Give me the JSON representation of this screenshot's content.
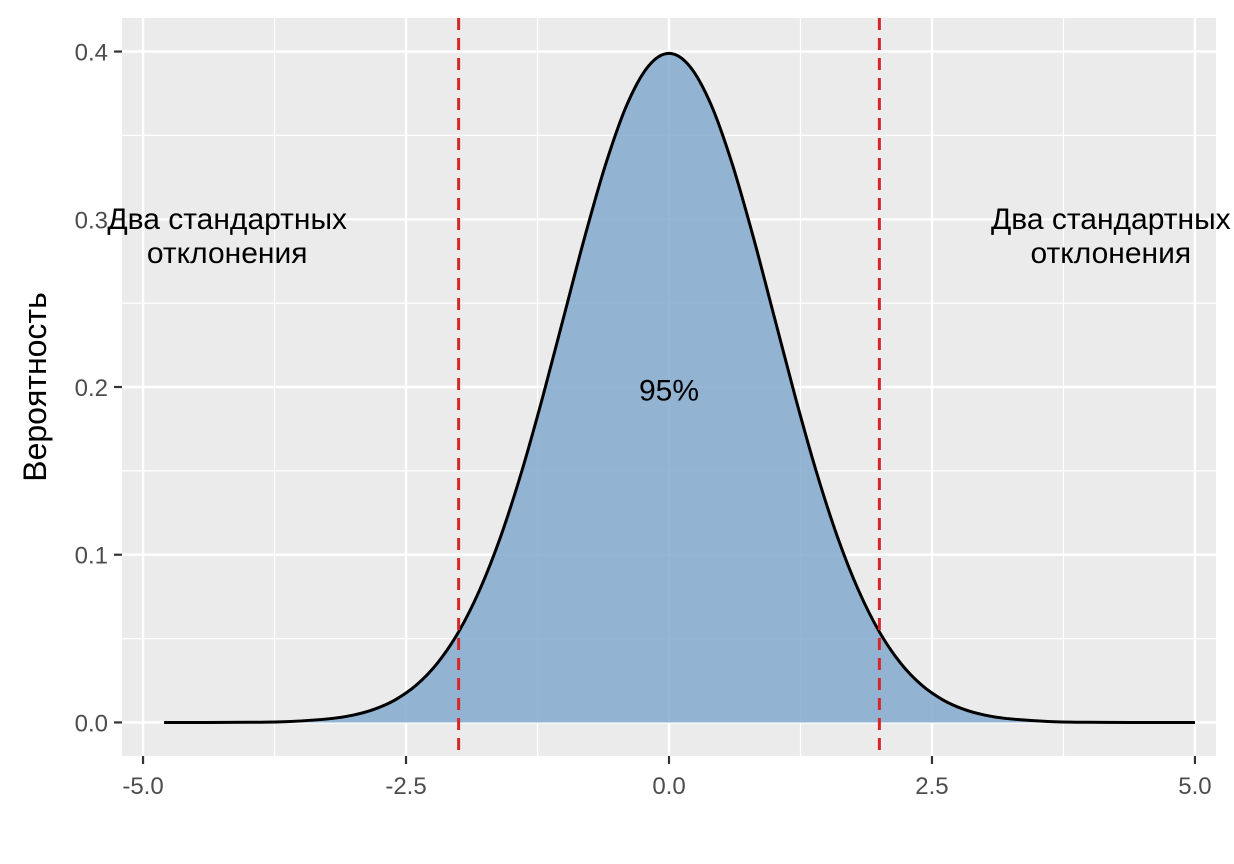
{
  "chart_data": {
    "type": "area",
    "title": "",
    "xlabel": "",
    "ylabel": "Вероятность",
    "xlim": [
      -5.2,
      5.2
    ],
    "ylim": [
      -0.02,
      0.42
    ],
    "x_ticks": [
      -5.0,
      -2.5,
      0.0,
      2.5,
      5.0
    ],
    "x_tick_labels": [
      "-5.0",
      "-2.5",
      "0.0",
      "2.5",
      "5.0"
    ],
    "y_ticks": [
      0.0,
      0.1,
      0.2,
      0.3,
      0.4
    ],
    "y_tick_labels": [
      "0.0",
      "0.1",
      "0.2",
      "0.3",
      "0.4"
    ],
    "grid": true,
    "curve": {
      "x": [
        -4.8,
        -4.4,
        -4.0,
        -3.6,
        -3.2,
        -3.0,
        -2.8,
        -2.6,
        -2.4,
        -2.2,
        -2.0,
        -1.8,
        -1.6,
        -1.4,
        -1.2,
        -1.0,
        -0.8,
        -0.6,
        -0.4,
        -0.2,
        0.0,
        0.2,
        0.4,
        0.6,
        0.8,
        1.0,
        1.2,
        1.4,
        1.6,
        1.8,
        2.0,
        2.2,
        2.4,
        2.6,
        2.8,
        3.0,
        3.2,
        3.6,
        4.0,
        4.4,
        5.0
      ],
      "y": [
        0.0,
        0.0,
        0.0001,
        0.0006,
        0.0024,
        0.0044,
        0.0079,
        0.0136,
        0.0224,
        0.0355,
        0.054,
        0.079,
        0.1109,
        0.1497,
        0.1942,
        0.242,
        0.2897,
        0.3332,
        0.3683,
        0.391,
        0.3989,
        0.391,
        0.3683,
        0.3332,
        0.2897,
        0.242,
        0.1942,
        0.1497,
        0.1109,
        0.079,
        0.054,
        0.0355,
        0.0224,
        0.0136,
        0.0079,
        0.0044,
        0.0024,
        0.0006,
        0.0001,
        0.0,
        0.0
      ]
    },
    "shaded_range": [
      -2.0,
      2.0
    ],
    "reference_lines": [
      -2.0,
      2.0
    ],
    "annotations": [
      {
        "text": "Два стандартных\nотклонения",
        "x": -4.2,
        "y": 0.29
      },
      {
        "text": "Два стандартных\nотклонения",
        "x": 4.2,
        "y": 0.29
      },
      {
        "text": "95%",
        "x": 0.0,
        "y": 0.198
      }
    ],
    "colors": {
      "panel": "#ebebeb",
      "grid": "#ffffff",
      "fill": "#7fa6cc",
      "curve": "#000000",
      "reference_line": "#d62728"
    }
  }
}
